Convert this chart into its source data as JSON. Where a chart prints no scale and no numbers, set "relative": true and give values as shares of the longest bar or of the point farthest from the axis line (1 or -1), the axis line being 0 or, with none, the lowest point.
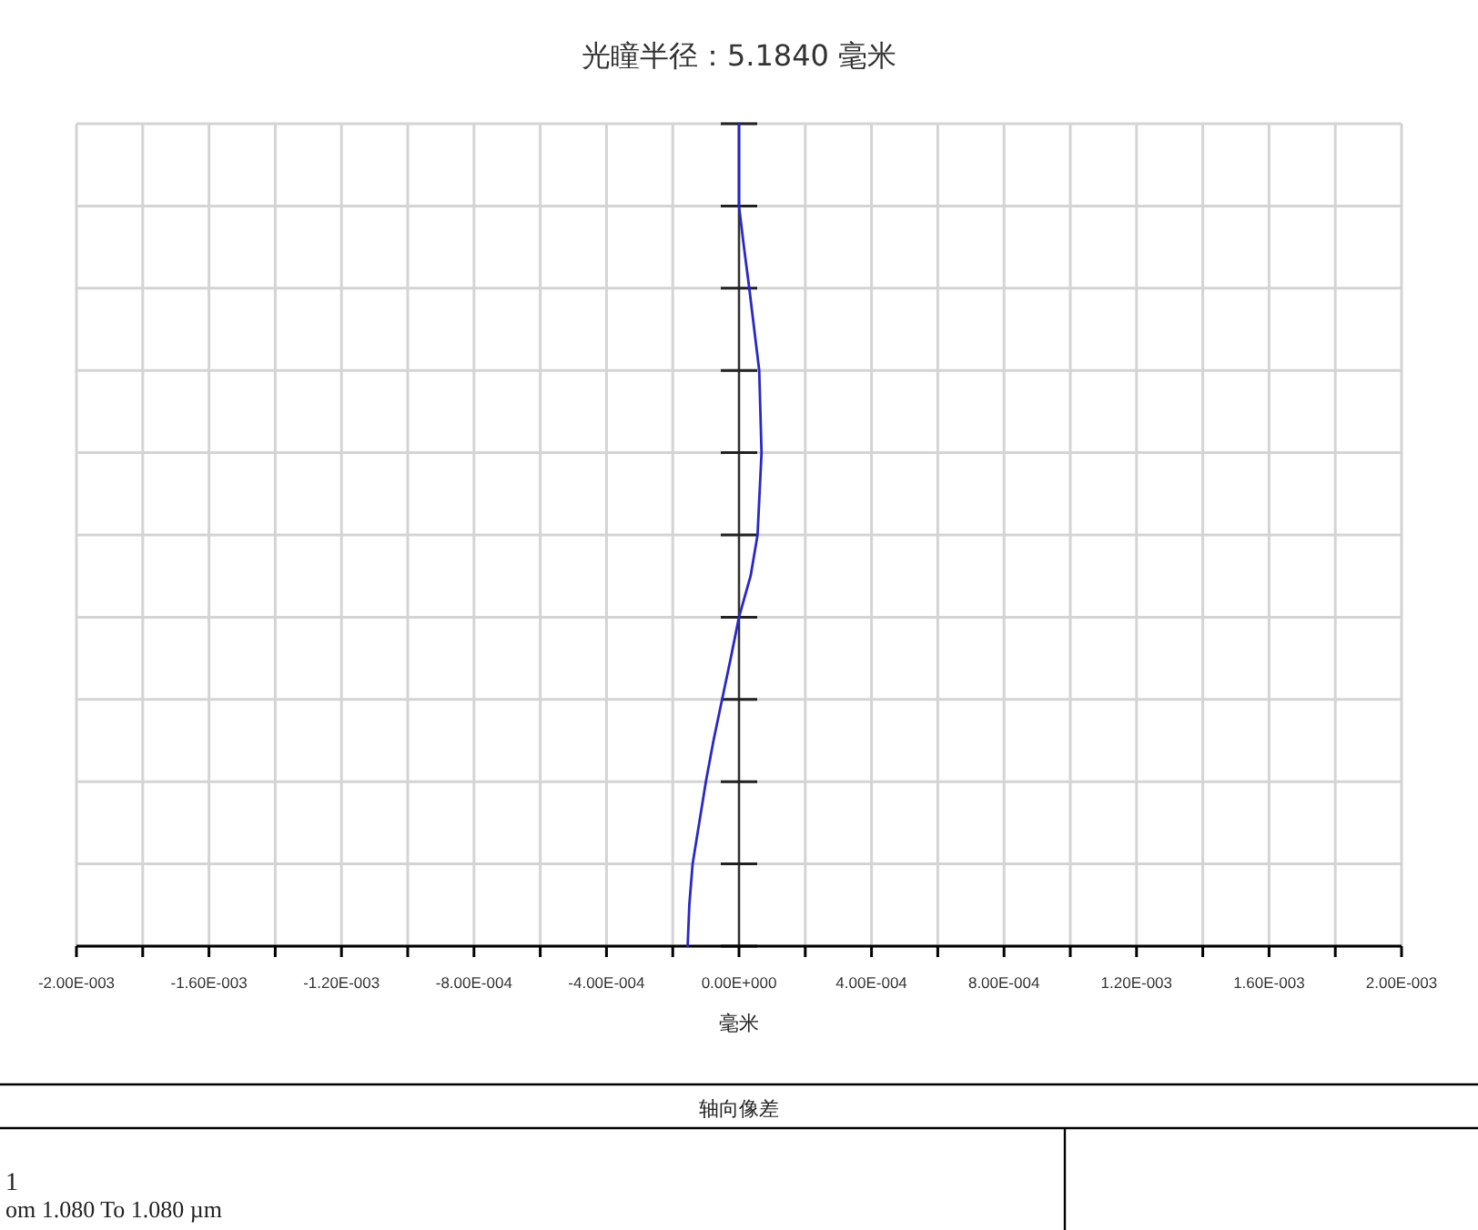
{
  "chart_data": {
    "type": "line",
    "title": "光瞳半径：5.1840 毫米",
    "xlabel": "毫米",
    "annotations": [
      "轴向像差",
      "1",
      "om 1.080 To 1.080 µm"
    ],
    "x": [
      0,
      0,
      1.5e-05,
      3.1e-05,
      6.1e-05,
      6.8e-05,
      5.6e-05,
      3.5e-05,
      0,
      -2.5e-05,
      -5.1e-05,
      -7.7e-05,
      -0.0001,
      -0.00012,
      -0.00014,
      -0.00015,
      -0.000155
    ],
    "series": [
      {
        "color": "#2828c8",
        "values": [
          1.0,
          0.9,
          0.85,
          0.8,
          0.7,
          0.6,
          0.5,
          0.45,
          0.4,
          0.35,
          0.3,
          0.25,
          0.2,
          0.15,
          0.1,
          0.05,
          0.0
        ]
      }
    ],
    "xlim": [
      -0.002,
      0.002
    ],
    "relative": true,
    "xticks": [
      {
        "value": -0.002,
        "label": "-2.00E-003"
      },
      {
        "value": -0.0018,
        "label": null
      },
      {
        "value": -0.0016,
        "label": "-1.60E-003"
      },
      {
        "value": -0.0014,
        "label": null
      },
      {
        "value": -0.0012,
        "label": "-1.20E-003"
      },
      {
        "value": -0.001,
        "label": null
      },
      {
        "value": -0.0008,
        "label": "-8.00E-004"
      },
      {
        "value": -0.0006,
        "label": null
      },
      {
        "value": -0.0004,
        "label": "-4.00E-004"
      },
      {
        "value": -0.0002,
        "label": null
      },
      {
        "value": 0,
        "label": "0.00E+000"
      },
      {
        "value": 0.0002,
        "label": null
      },
      {
        "value": 0.0004,
        "label": "4.00E-004"
      },
      {
        "value": 0.0006,
        "label": null
      },
      {
        "value": 0.0008,
        "label": "8.00E-004"
      },
      {
        "value": 0.001,
        "label": null
      },
      {
        "value": 0.0012,
        "label": "1.20E-003"
      },
      {
        "value": 0.0014,
        "label": null
      },
      {
        "value": 0.0016,
        "label": "1.60E-003"
      },
      {
        "value": 0.0018,
        "label": null
      },
      {
        "value": 0.002,
        "label": "2.00E-003"
      }
    ],
    "grid": true
  }
}
